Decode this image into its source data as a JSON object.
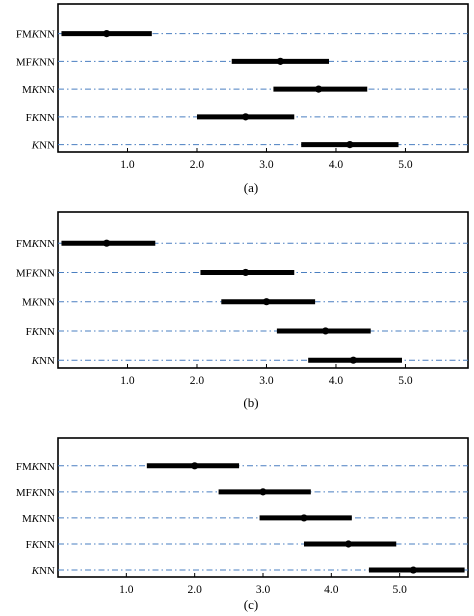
{
  "chart_data": [
    {
      "type": "dot-interval",
      "caption": "(a)",
      "xlim": [
        0.0,
        5.9
      ],
      "xticks": [
        "1.0",
        "2.0",
        "3.0",
        "4.0",
        "5.0"
      ],
      "xtick_values": [
        1.0,
        2.0,
        3.0,
        4.0,
        5.0
      ],
      "grid": "horizontal dash-dot",
      "rows": [
        {
          "label": "FMKNN",
          "center": 0.7,
          "low": 0.05,
          "high": 1.35
        },
        {
          "label": "MFKNN",
          "center": 3.2,
          "low": 2.5,
          "high": 3.9
        },
        {
          "label": "MKNN",
          "center": 3.75,
          "low": 3.1,
          "high": 4.45
        },
        {
          "label": "FKNN",
          "center": 2.7,
          "low": 2.0,
          "high": 3.4
        },
        {
          "label": "KNN",
          "center": 4.2,
          "low": 3.5,
          "high": 4.9
        }
      ]
    },
    {
      "type": "dot-interval",
      "caption": "(b)",
      "xlim": [
        0.0,
        5.9
      ],
      "xticks": [
        "1.0",
        "2.0",
        "3.0",
        "4.0",
        "5.0"
      ],
      "xtick_values": [
        1.0,
        2.0,
        3.0,
        4.0,
        5.0
      ],
      "grid": "horizontal dash-dot",
      "rows": [
        {
          "label": "FMKNN",
          "center": 0.7,
          "low": 0.05,
          "high": 1.4
        },
        {
          "label": "MFKNN",
          "center": 2.7,
          "low": 2.05,
          "high": 3.4
        },
        {
          "label": "MKNN",
          "center": 3.0,
          "low": 2.35,
          "high": 3.7
        },
        {
          "label": "FKNN",
          "center": 3.85,
          "low": 3.15,
          "high": 4.5
        },
        {
          "label": "KNN",
          "center": 4.25,
          "low": 3.6,
          "high": 4.95
        }
      ]
    },
    {
      "type": "dot-interval",
      "caption": "(c)",
      "xlim": [
        0.0,
        6.0
      ],
      "xticks": [
        "1.0",
        "2.0",
        "3.0",
        "4.0",
        "5.0"
      ],
      "xtick_values": [
        1.0,
        2.0,
        3.0,
        4.0,
        5.0
      ],
      "grid": "horizontal dash-dot",
      "rows": [
        {
          "label": "FMKNN",
          "center": 2.0,
          "low": 1.3,
          "high": 2.65
        },
        {
          "label": "MFKNN",
          "center": 3.0,
          "low": 2.35,
          "high": 3.7
        },
        {
          "label": "MKNN",
          "center": 3.6,
          "low": 2.95,
          "high": 4.3
        },
        {
          "label": "FKNN",
          "center": 4.25,
          "low": 3.6,
          "high": 4.95
        },
        {
          "label": "KNN",
          "center": 5.2,
          "low": 4.55,
          "high": 5.95
        }
      ]
    }
  ],
  "colors": {
    "grid": "#4a7fc1",
    "interval": "#000000",
    "axes": "#000000"
  }
}
